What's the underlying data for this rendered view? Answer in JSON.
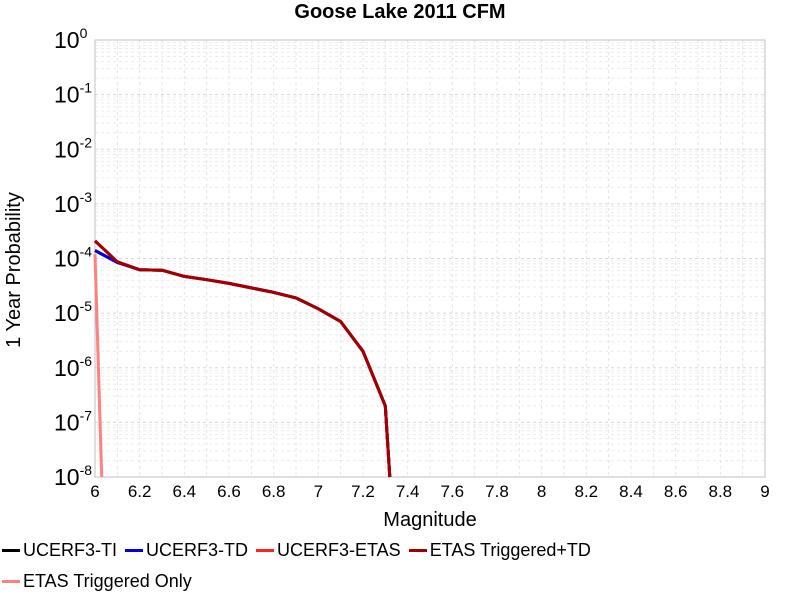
{
  "chart_data": {
    "type": "line",
    "title": "Goose Lake 2011 CFM",
    "xlabel": "Magnitude",
    "ylabel": "1 Year Probability",
    "xlim": [
      6,
      9
    ],
    "ylim": [
      1e-08,
      1
    ],
    "yscale": "log",
    "grid": true,
    "legend_position": "bottom",
    "xticks": [
      "6",
      "6.2",
      "6.4",
      "6.6",
      "6.8",
      "7",
      "7.2",
      "7.4",
      "7.6",
      "7.8",
      "8",
      "8.2",
      "8.4",
      "8.6",
      "8.8",
      "9"
    ],
    "yticks": [
      {
        "base": "10",
        "exp": "0"
      },
      {
        "base": "10",
        "exp": "-1"
      },
      {
        "base": "10",
        "exp": "-2"
      },
      {
        "base": "10",
        "exp": "-3"
      },
      {
        "base": "10",
        "exp": "-4"
      },
      {
        "base": "10",
        "exp": "-5"
      },
      {
        "base": "10",
        "exp": "-6"
      },
      {
        "base": "10",
        "exp": "-7"
      },
      {
        "base": "10",
        "exp": "-8"
      }
    ],
    "series": [
      {
        "name": "UCERF3-TI",
        "color": "#000000",
        "x": [
          6.0,
          6.1,
          6.2,
          6.3,
          6.4,
          6.5,
          6.6,
          6.7,
          6.8,
          6.9,
          7.0,
          7.1,
          7.2,
          7.3,
          7.32
        ],
        "y": [
          0.00014,
          8.5e-05,
          6.2e-05,
          6.1e-05,
          4.7e-05,
          4.1e-05,
          3.5e-05,
          2.9e-05,
          2.4e-05,
          1.9e-05,
          1.2e-05,
          7e-06,
          2e-06,
          2e-07,
          1e-08
        ]
      },
      {
        "name": "UCERF3-TD",
        "color": "#0000e0",
        "x": [
          6.0,
          6.1,
          6.2,
          6.3,
          6.4,
          6.5,
          6.6,
          6.7,
          6.8,
          6.9,
          7.0,
          7.1,
          7.2,
          7.3,
          7.32
        ],
        "y": [
          0.00014,
          8.5e-05,
          6.2e-05,
          6.1e-05,
          4.7e-05,
          4.1e-05,
          3.5e-05,
          2.9e-05,
          2.4e-05,
          1.9e-05,
          1.2e-05,
          7e-06,
          2e-06,
          2e-07,
          1e-08
        ]
      },
      {
        "name": "UCERF3-ETAS",
        "color": "#ff2020",
        "x": [
          6.0,
          6.1,
          6.2,
          6.3,
          6.4,
          6.5,
          6.6,
          6.7,
          6.8,
          6.9,
          7.0,
          7.1,
          7.2,
          7.3,
          7.32
        ],
        "y": [
          0.00021,
          8.7e-05,
          6.2e-05,
          6.1e-05,
          4.7e-05,
          4.1e-05,
          3.5e-05,
          2.9e-05,
          2.4e-05,
          1.9e-05,
          1.2e-05,
          7e-06,
          2e-06,
          2e-07,
          1e-08
        ]
      },
      {
        "name": "ETAS Triggered+TD",
        "color": "#a00000",
        "x": [
          6.0,
          6.1,
          6.2,
          6.3,
          6.4,
          6.5,
          6.6,
          6.7,
          6.8,
          6.9,
          7.0,
          7.1,
          7.2,
          7.3,
          7.32
        ],
        "y": [
          0.00021,
          8.7e-05,
          6.2e-05,
          6.1e-05,
          4.7e-05,
          4.1e-05,
          3.5e-05,
          2.9e-05,
          2.4e-05,
          1.9e-05,
          1.2e-05,
          7e-06,
          2e-06,
          2e-07,
          1e-08
        ]
      },
      {
        "name": "ETAS Triggered Only",
        "color": "#ff8080",
        "x": [
          6.0,
          6.03
        ],
        "y": [
          0.00012,
          1e-08
        ]
      }
    ]
  }
}
